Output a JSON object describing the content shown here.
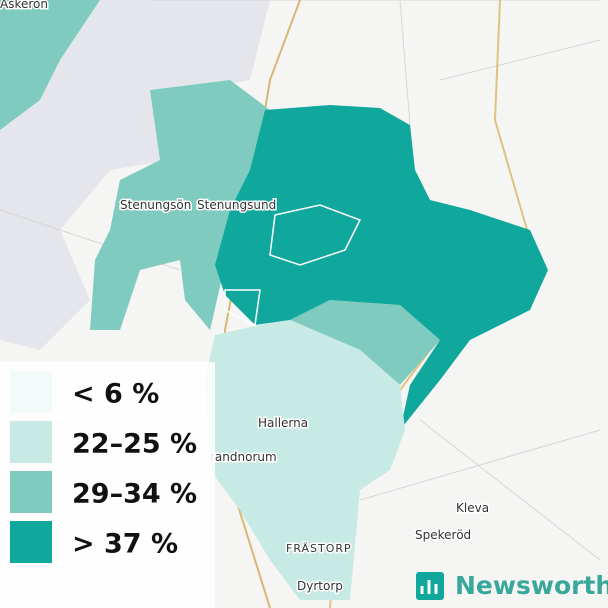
{
  "legend": [
    {
      "label": "< 6 %",
      "color": "#f2fbfa"
    },
    {
      "label": "22–25 %",
      "color": "#c8eae5"
    },
    {
      "label": "29–34 %",
      "color": "#7fcbc0"
    },
    {
      "label": "> 37 %",
      "color": "#10a79c"
    }
  ],
  "places": [
    "Askerön",
    "Stenungsön",
    "Stenungsund",
    "Hallerna",
    "randnorum",
    "Kleva",
    "Spekeröd",
    "FRÄSTORP",
    "Dyrtorp"
  ],
  "brand": "Newsworthy"
}
